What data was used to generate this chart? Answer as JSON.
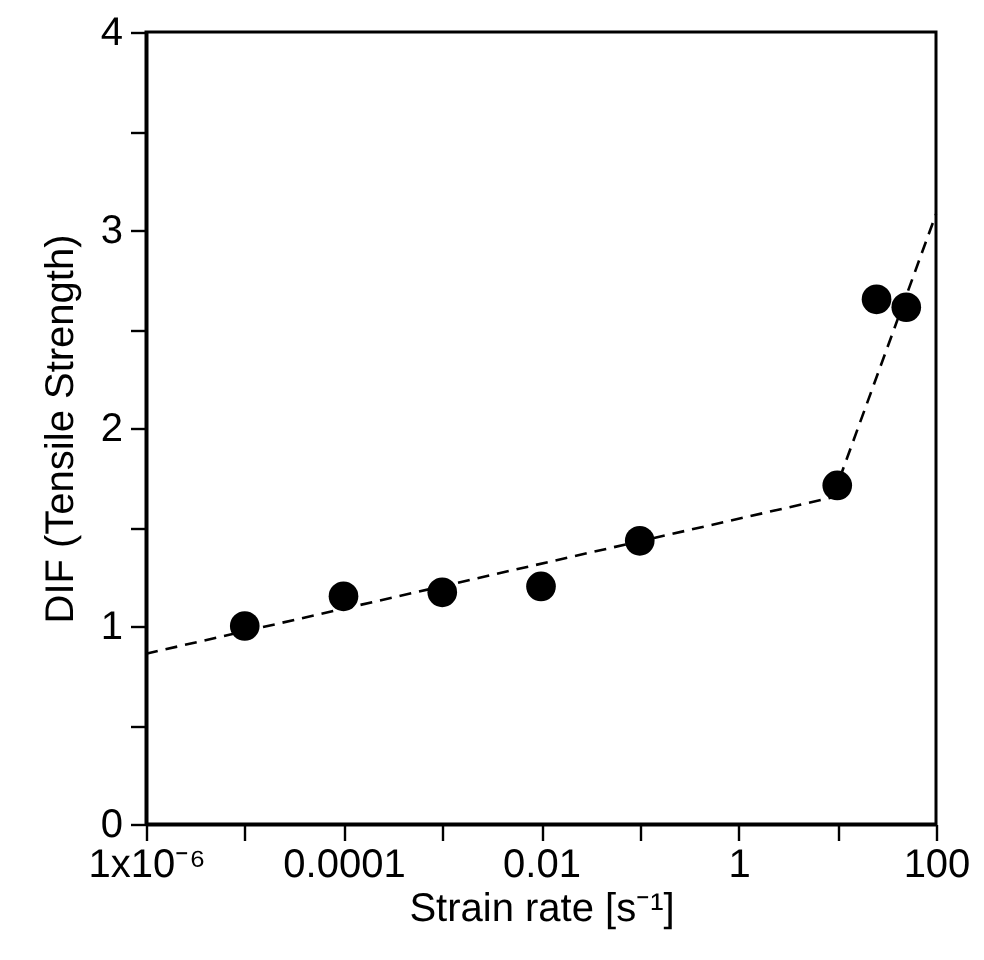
{
  "chart_data": {
    "type": "scatter",
    "xlabel": "Strain rate [s⁻¹]",
    "ylabel": "DIF (Tensile Strength)",
    "log": "x",
    "xlim": [
      1e-06,
      100
    ],
    "ylim": [
      0,
      4
    ],
    "xticks": [
      {
        "value": 1e-06,
        "label": "1x10⁻⁶"
      },
      {
        "value": 1e-05,
        "label": null
      },
      {
        "value": 0.0001,
        "label": "0.0001"
      },
      {
        "value": 0.001,
        "label": null
      },
      {
        "value": 0.01,
        "label": "0.01"
      },
      {
        "value": 0.1,
        "label": null
      },
      {
        "value": 1,
        "label": "1"
      },
      {
        "value": 10,
        "label": null
      },
      {
        "value": 100,
        "label": "100"
      }
    ],
    "yticks": [
      0,
      {
        "value": 0.5,
        "label": null
      },
      1,
      {
        "value": 1.5,
        "label": null
      },
      2,
      {
        "value": 2.5,
        "label": null
      },
      3,
      {
        "value": 3.5,
        "label": null
      },
      4
    ],
    "marker": "circle",
    "grid": false,
    "series": [
      {
        "color": "#000000",
        "x": [
          1e-05,
          0.0001,
          0.001,
          0.01,
          0.1,
          10,
          25,
          50
        ],
        "values": [
          1.0,
          1.15,
          1.17,
          1.2,
          1.43,
          1.71,
          2.65,
          2.61
        ]
      },
      {
        "type": "line",
        "color": "#000000",
        "line_style": "dashed",
        "marker": "none",
        "x": [
          1e-06,
          9
        ],
        "values": [
          0.86,
          1.65
        ]
      },
      {
        "type": "line",
        "color": "#000000",
        "line_style": "dashed",
        "marker": "none",
        "x": [
          9,
          100
        ],
        "values": [
          1.65,
          3.08
        ]
      }
    ]
  }
}
